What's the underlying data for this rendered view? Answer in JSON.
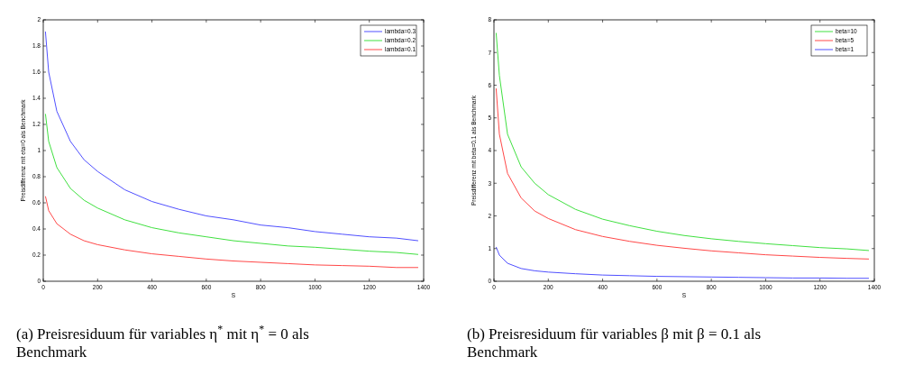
{
  "chart_data": [
    {
      "type": "line",
      "xlabel": "S",
      "ylabel": "Preisdifferenz mit eta=0 als Benchmark",
      "xlim": [
        0,
        1400
      ],
      "xticks": [
        0,
        200,
        400,
        600,
        800,
        1000,
        1200,
        1400
      ],
      "ylim": [
        0,
        2
      ],
      "yticks": [
        0,
        0.2,
        0.4,
        0.6,
        0.8,
        1,
        1.2,
        1.4,
        1.6,
        1.8,
        2
      ],
      "legend": "top right",
      "annotations": [
        "(a) Preisresiduum für variables η$^{*}$ mit η$^{*}$ = 0 als Benchmark"
      ],
      "x": [
        8,
        20,
        50,
        100,
        150,
        200,
        300,
        400,
        500,
        600,
        700,
        800,
        900,
        1000,
        1100,
        1200,
        1300,
        1380
      ],
      "series": [
        {
          "name": "lambda=0.3",
          "color": "#5050ff",
          "values": [
            1.91,
            1.6,
            1.3,
            1.07,
            0.93,
            0.84,
            0.7,
            0.61,
            0.55,
            0.5,
            0.47,
            0.43,
            0.41,
            0.38,
            0.36,
            0.34,
            0.33,
            0.31
          ]
        },
        {
          "name": "lambda=0.2",
          "color": "#40e040",
          "values": [
            1.28,
            1.07,
            0.87,
            0.71,
            0.62,
            0.56,
            0.47,
            0.41,
            0.37,
            0.34,
            0.31,
            0.29,
            0.27,
            0.26,
            0.245,
            0.23,
            0.22,
            0.205
          ]
        },
        {
          "name": "lambda=0.1",
          "color": "#ff4848",
          "values": [
            0.65,
            0.54,
            0.44,
            0.36,
            0.31,
            0.28,
            0.24,
            0.21,
            0.19,
            0.17,
            0.155,
            0.145,
            0.135,
            0.125,
            0.12,
            0.115,
            0.105,
            0.105
          ]
        }
      ]
    },
    {
      "type": "line",
      "xlabel": "S",
      "ylabel": "Preisdifferenz mit beta=0.1 als Benchmark",
      "xlim": [
        0,
        1400
      ],
      "xticks": [
        0,
        200,
        400,
        600,
        800,
        1000,
        1200,
        1400
      ],
      "ylim": [
        0,
        8
      ],
      "yticks": [
        0,
        1,
        2,
        3,
        4,
        5,
        6,
        7,
        8
      ],
      "legend": "top right",
      "annotations": [
        "(b) Preisresiduum für variables β mit β = 0.1 als Benchmark"
      ],
      "x": [
        8,
        20,
        50,
        100,
        150,
        200,
        300,
        400,
        500,
        600,
        700,
        800,
        900,
        1000,
        1100,
        1200,
        1300,
        1380
      ],
      "series": [
        {
          "name": "beta=10",
          "color": "#40e040",
          "values": [
            7.6,
            6.3,
            4.5,
            3.5,
            3.0,
            2.65,
            2.2,
            1.9,
            1.7,
            1.53,
            1.4,
            1.3,
            1.22,
            1.15,
            1.09,
            1.03,
            0.99,
            0.94
          ]
        },
        {
          "name": "beta=5",
          "color": "#ff4848",
          "values": [
            5.9,
            4.5,
            3.3,
            2.55,
            2.15,
            1.92,
            1.58,
            1.37,
            1.22,
            1.1,
            1.01,
            0.93,
            0.87,
            0.81,
            0.77,
            0.73,
            0.7,
            0.68
          ]
        },
        {
          "name": "beta=1",
          "color": "#5050ff",
          "values": [
            1.05,
            0.8,
            0.55,
            0.39,
            0.32,
            0.28,
            0.23,
            0.19,
            0.17,
            0.15,
            0.14,
            0.13,
            0.12,
            0.11,
            0.1,
            0.1,
            0.09,
            0.09
          ]
        }
      ]
    }
  ]
}
